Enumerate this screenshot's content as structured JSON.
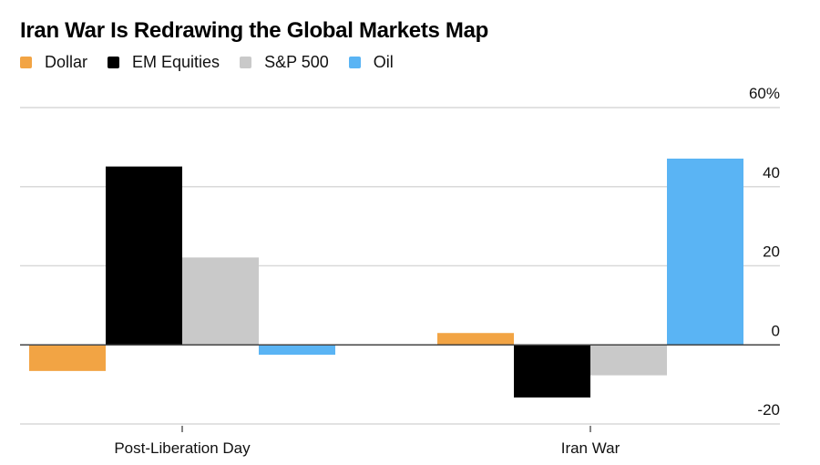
{
  "chart_data": {
    "type": "bar",
    "title": "Iran War Is Redrawing the Global Markets Map",
    "xlabel": "",
    "ylabel": "",
    "ylim": [
      -20,
      60
    ],
    "y_ticks": [
      60,
      40,
      20,
      0,
      -20
    ],
    "y_tick_labels": [
      "60%",
      "40",
      "20",
      "0",
      "-20"
    ],
    "y_axis_position": "right",
    "grid": true,
    "legend_position": "top-left",
    "categories": [
      "Post-Liberation Day",
      "Iran War"
    ],
    "series": [
      {
        "name": "Dollar",
        "color": "#F2A444",
        "values": [
          -6.6,
          3.0
        ]
      },
      {
        "name": "EM Equities",
        "color": "#000000",
        "values": [
          45.1,
          -13.3
        ]
      },
      {
        "name": "S&P 500",
        "color": "#C9C9C9",
        "values": [
          22.1,
          -7.7
        ]
      },
      {
        "name": "Oil",
        "color": "#5AB4F4",
        "values": [
          -2.5,
          47.1
        ]
      }
    ]
  }
}
